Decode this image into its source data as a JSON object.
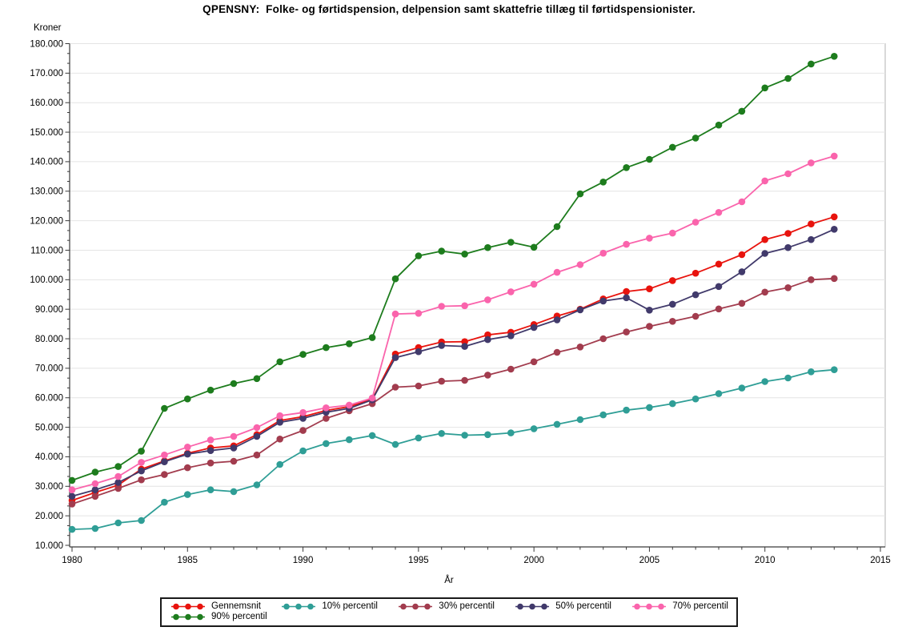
{
  "chart_data": {
    "type": "line",
    "title": "QPENSNY:  Folke- og førtidspension, delpension samt skattefrie tillæg til førtidspensionister.",
    "xlabel": "År",
    "ylabel": "Kroner",
    "xlim": [
      1979.9,
      2015.6
    ],
    "ylim": [
      10000,
      180000
    ],
    "y_tick_step": 10000,
    "y_tick_labels": [
      "10.000",
      "20.000",
      "30.000",
      "40.000",
      "50.000",
      "60.000",
      "70.000",
      "80.000",
      "90.000",
      "100.000",
      "110.000",
      "120.000",
      "130.000",
      "140.000",
      "150.000",
      "160.000",
      "170.000",
      "180.000"
    ],
    "x_tick_labels": [
      "1980",
      "1985",
      "1990",
      "1995",
      "2000",
      "2005",
      "2010",
      "2015"
    ],
    "grid": "horizontal-only",
    "legend_position": "bottom-center-box",
    "marker": "circle",
    "x": [
      1980,
      1981,
      1982,
      1983,
      1984,
      1985,
      1986,
      1987,
      1988,
      1989,
      1990,
      1991,
      1992,
      1993,
      1994,
      1995,
      1996,
      1997,
      1998,
      1999,
      2000,
      2001,
      2002,
      2003,
      2004,
      2005,
      2006,
      2007,
      2008,
      2009,
      2010,
      2011,
      2012,
      2013
    ],
    "series": [
      {
        "name": "Gennemsnit",
        "color": "#e8130d",
        "values": [
          25200,
          27900,
          30400,
          35800,
          38600,
          41200,
          43000,
          43700,
          47500,
          52300,
          53600,
          55700,
          57000,
          59500,
          74800,
          77000,
          78900,
          79000,
          81300,
          82200,
          84800,
          87700,
          90000,
          93500,
          96000,
          96900,
          99700,
          102200,
          105300,
          108500,
          113600,
          115700,
          118900,
          121300
        ]
      },
      {
        "name": "10% percentil",
        "color": "#2f9e96",
        "values": [
          15400,
          15700,
          17600,
          18400,
          24600,
          27200,
          28800,
          28200,
          30500,
          37400,
          42000,
          44500,
          45800,
          47200,
          44200,
          46400,
          47900,
          47300,
          47500,
          48100,
          49500,
          51000,
          52600,
          54200,
          55800,
          56700,
          58000,
          59600,
          61400,
          63300,
          65500,
          66700,
          68800,
          69500
        ]
      },
      {
        "name": "30% percentil",
        "color": "#a23c4e",
        "values": [
          24000,
          26600,
          29300,
          32200,
          34000,
          36300,
          37900,
          38500,
          40600,
          46000,
          48900,
          53000,
          55600,
          58000,
          63600,
          64000,
          65600,
          65900,
          67700,
          69700,
          72200,
          75400,
          77200,
          80000,
          82300,
          84200,
          85900,
          87600,
          90100,
          92000,
          95800,
          97300,
          100000,
          100400
        ]
      },
      {
        "name": "50% percentil",
        "color": "#413a6b",
        "values": [
          26600,
          28800,
          31300,
          35200,
          38300,
          40900,
          42100,
          43000,
          46900,
          51700,
          53000,
          55100,
          56400,
          59300,
          73600,
          75600,
          77700,
          77400,
          79700,
          81000,
          83800,
          86400,
          89800,
          92800,
          93900,
          89700,
          91700,
          94900,
          97700,
          102700,
          108900,
          110900,
          113600,
          117100
        ]
      },
      {
        "name": "70% percentil",
        "color": "#fa64ac",
        "values": [
          28800,
          30900,
          33300,
          38100,
          40600,
          43300,
          45700,
          46900,
          49900,
          53900,
          55000,
          56600,
          57500,
          59900,
          88400,
          88600,
          91000,
          91200,
          93200,
          95900,
          98500,
          102500,
          105100,
          109000,
          112000,
          114100,
          115800,
          119500,
          122800,
          126400,
          133500,
          135900,
          139600,
          141900
        ]
      },
      {
        "name": "90% percentil",
        "color": "#1d7c1d",
        "values": [
          32000,
          34800,
          36700,
          41900,
          56400,
          59600,
          62600,
          64800,
          66500,
          72200,
          74700,
          77000,
          78300,
          80400,
          100300,
          108100,
          109700,
          108700,
          110900,
          112700,
          111000,
          118000,
          129100,
          133100,
          138000,
          140800,
          144900,
          148000,
          152400,
          157100,
          165000,
          168200,
          173100,
          175700
        ]
      }
    ],
    "style": {
      "grid_color": "#e4e4e4",
      "frame_color": "#b3b3b3",
      "axis_color": "#3a3a3a",
      "background": "#ffffff"
    }
  }
}
